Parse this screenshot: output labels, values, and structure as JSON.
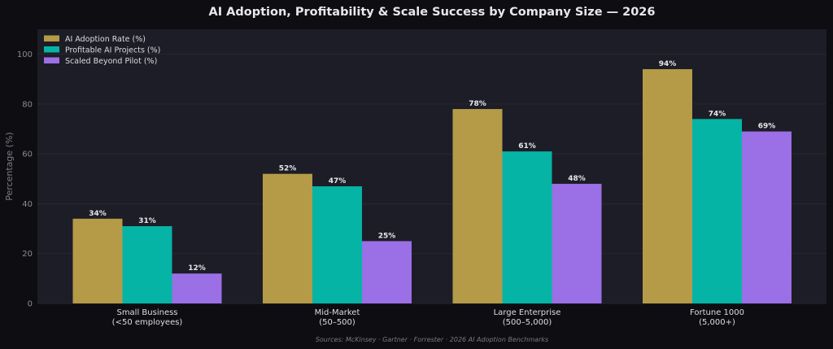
{
  "chart_data": {
    "type": "bar",
    "title": "AI Adoption, Profitability & Scale Success by Company Size — 2026",
    "ylabel": "Percentage (%)",
    "xlabel": "",
    "ylim": [
      0,
      110
    ],
    "yticks": [
      0,
      20,
      40,
      60,
      80,
      100
    ],
    "categories": [
      [
        "Small Business",
        "(<50 employees)"
      ],
      [
        "Mid-Market",
        "(50–500)"
      ],
      [
        "Large Enterprise",
        "(500–5,000)"
      ],
      [
        "Fortune 1000",
        "(5,000+)"
      ]
    ],
    "series": [
      {
        "name": "AI Adoption Rate (%)",
        "color": "#b59a48",
        "values": [
          34,
          52,
          78,
          94
        ],
        "labels": [
          "34%",
          "52%",
          "78%",
          "94%"
        ]
      },
      {
        "name": "Profitable AI Projects (%)",
        "color": "#06b4a6",
        "values": [
          31,
          47,
          61,
          74
        ],
        "labels": [
          "31%",
          "47%",
          "61%",
          "74%"
        ]
      },
      {
        "name": "Scaled Beyond Pilot (%)",
        "color": "#9b6fe6",
        "values": [
          12,
          25,
          48,
          69
        ],
        "labels": [
          "12%",
          "25%",
          "48%",
          "69%"
        ]
      }
    ],
    "grid": true,
    "legend_position": "top-left",
    "source_note": "Sources: McKinsey · Gartner · Forrester · 2026 AI Adoption Benchmarks"
  },
  "colors": {
    "page_background": "#0e0e12",
    "plot_background": "#1d1d27",
    "grid": "#2b2b37"
  }
}
